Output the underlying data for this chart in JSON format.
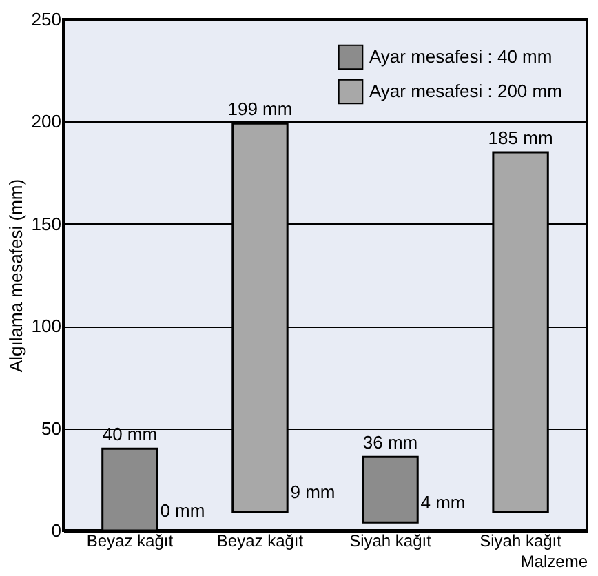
{
  "chart_data": {
    "type": "bar",
    "categories": [
      "Beyaz kağıt",
      "Beyaz kağıt",
      "Siyah kağıt",
      "Siyah kağıt"
    ],
    "xlabel": "Malzeme",
    "ylabel": "Algılama mesafesi  (mm)",
    "ylim": [
      0,
      250
    ],
    "yticks": [
      0,
      50,
      100,
      150,
      200,
      250
    ],
    "grid": "y",
    "legend": "top right",
    "series": [
      {
        "name": "Ayar mesafesi : 40 mm",
        "color": "#8c8c8c",
        "values": [
          40,
          null,
          32,
          null
        ],
        "base": [
          0,
          null,
          4,
          null
        ],
        "value_labels": [
          "40 mm",
          null,
          "36 mm",
          null
        ]
      },
      {
        "name": "Ayar mesafesi : 200 mm",
        "color": "#a8a8a8",
        "values": [
          null,
          190,
          null,
          176
        ],
        "base": [
          null,
          9,
          null,
          9
        ],
        "value_labels": [
          null,
          "199 mm",
          null,
          "185 mm"
        ]
      }
    ],
    "annotations": [
      "0 mm",
      "9 mm",
      "4 mm"
    ]
  }
}
